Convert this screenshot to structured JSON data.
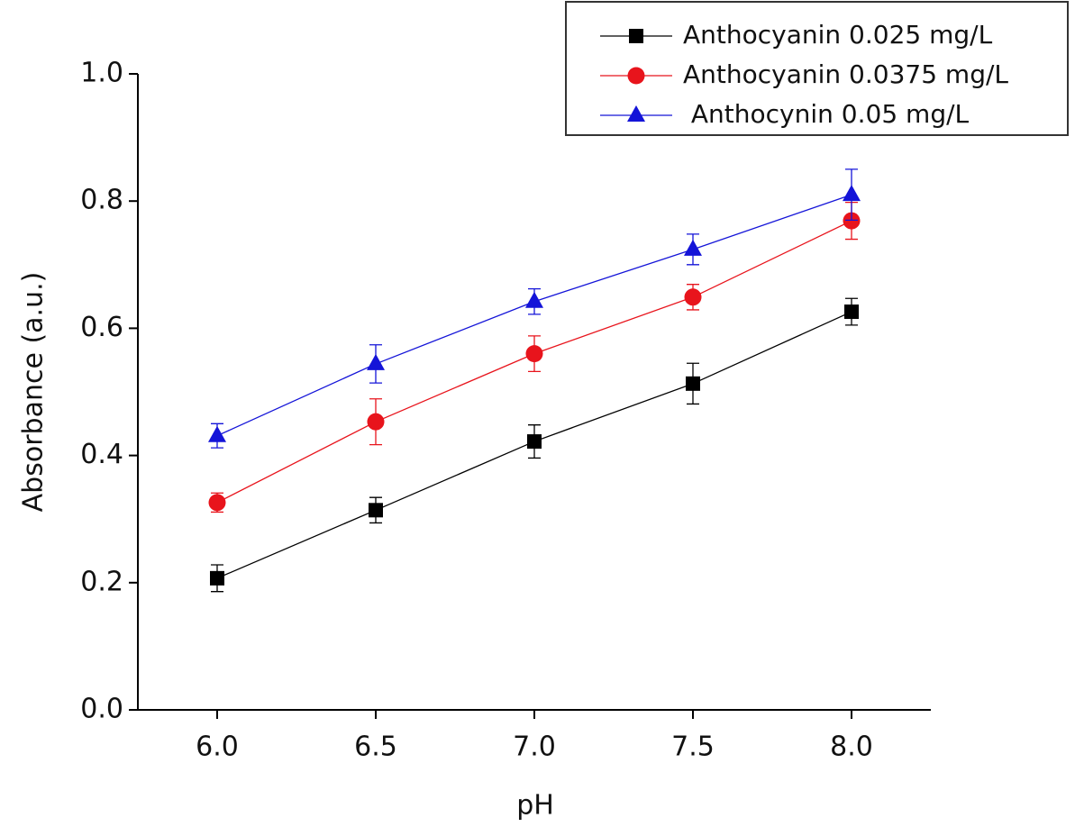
{
  "chart_data": {
    "type": "line",
    "x_label": "pH",
    "y_label": "Absorbance (a.u.)",
    "x": [
      6.0,
      6.5,
      7.0,
      7.5,
      8.0
    ],
    "xlim": [
      5.75,
      8.25
    ],
    "xticks": [
      {
        "value": 6,
        "label": "6.0"
      },
      6.5,
      {
        "value": 7,
        "label": "7.0"
      },
      7.5,
      {
        "value": 8,
        "label": "8.0"
      }
    ],
    "ylim": [
      0,
      1
    ],
    "yticks": [
      {
        "value": 0,
        "label": "0.0"
      },
      0.2,
      0.4,
      0.6,
      0.8,
      {
        "value": 1,
        "label": "1.0"
      }
    ],
    "legend": "top-right",
    "series": [
      {
        "name": "Anthocyanin 0.025 mg/L",
        "color": "#000000",
        "marker": "square",
        "values": [
          0.207,
          0.314,
          0.422,
          0.513,
          0.626
        ],
        "errors": [
          0.021,
          0.02,
          0.026,
          0.032,
          0.021
        ]
      },
      {
        "name": "Anthocyanin 0.0375 mg/L",
        "color": "#e8141c",
        "marker": "circle",
        "values": [
          0.326,
          0.453,
          0.56,
          0.649,
          0.769
        ],
        "errors": [
          0.015,
          0.036,
          0.028,
          0.02,
          0.029
        ]
      },
      {
        "name": " Anthocynin 0.05 mg/L",
        "color": "#1414d8",
        "marker": "triangle",
        "values": [
          0.431,
          0.544,
          0.642,
          0.724,
          0.81
        ],
        "errors": [
          0.019,
          0.03,
          0.02,
          0.024,
          0.04
        ]
      }
    ]
  }
}
